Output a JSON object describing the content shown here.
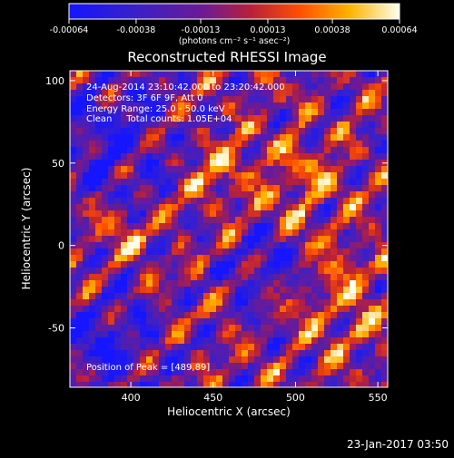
{
  "chart_data": {
    "type": "heatmap",
    "title": "Reconstructed RHESSI Image",
    "xlabel": "Heliocentric X (arcsec)",
    "ylabel": "Heliocentric Y (arcsec)",
    "xlim": [
      363,
      556
    ],
    "ylim": [
      -86,
      106
    ],
    "x_ticks": [
      400,
      450,
      500,
      550
    ],
    "y_ticks": [
      -50,
      0,
      50,
      100
    ],
    "colorbar": {
      "range": [
        -0.00064,
        0.00064
      ],
      "ticks": [
        -0.00064,
        -0.00038,
        -0.00013,
        0.00013,
        0.00038,
        0.00064
      ],
      "tick_labels": [
        "-0.00064",
        "-0.00038",
        "-0.00013",
        "0.00013",
        "0.00038",
        "0.00064"
      ],
      "unit_label": "(photons cm⁻² s⁻¹ asec⁻²)"
    },
    "annotations": {
      "time": "24-Aug-2014 23:10:42.000 to 23:20:42.000",
      "detectors": "Detectors: 3F 6F 9F, Att 0",
      "energy": "Energy Range: 25.0 - 50.0 keV",
      "clean": "Clean     Total counts: 1.05E+04",
      "peak": "Position of Peak = [489,89]"
    },
    "footer_date": "23-Jan-2017 03:50"
  }
}
